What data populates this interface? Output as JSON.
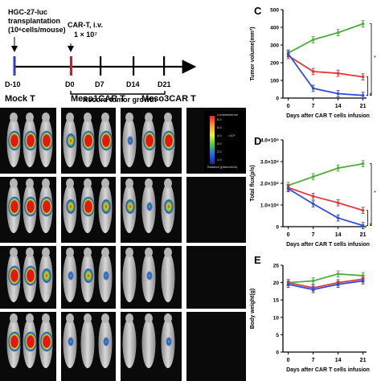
{
  "timeline": {
    "inj1_line1": "HGC-27-luc",
    "inj1_line2": "transplantation",
    "inj1_line3": "(10⁶cells/mouse)",
    "inj2_line1": "CAR-T, i.v.",
    "inj2_line2": "1 × 10⁷",
    "days": [
      "D-10",
      "D0",
      "D7",
      "D14",
      "D21"
    ],
    "record_label": "Record tumor growth",
    "colors": {
      "d_minus10": "#2b3fd0",
      "d0": "#c8202a"
    }
  },
  "imaging": {
    "groups": [
      "Mock T",
      "Meso1CAR T",
      "Meso3CAR T"
    ],
    "scale_unit": "Luminescence",
    "scale_ticks": [
      "6.0",
      "5.0",
      "4.0",
      "3.0",
      "2.0",
      "1.0"
    ],
    "scale_exponent": "×10⁶",
    "scale_units_label": "Radiance (p/sec/cm²/sr)"
  },
  "panel_letters": {
    "C": "C",
    "D": "D",
    "E": "E"
  },
  "series_colors": {
    "mock": "#4caf3a",
    "meso1": "#e03a3a",
    "meso3": "#2f4fd6"
  },
  "chart_data": [
    {
      "type": "line",
      "panel": "C",
      "xlabel": "Days after CAR T cells infusion",
      "ylabel": "Tumor volume(mm³)",
      "x": [
        0,
        7,
        14,
        21
      ],
      "ylim": [
        0,
        500
      ],
      "yticks": [
        0,
        100,
        200,
        300,
        400,
        500
      ],
      "ytick_labels": [
        "0",
        "100",
        "200",
        "300",
        "400",
        "500"
      ],
      "series": [
        {
          "key": "mock",
          "values": [
            255,
            330,
            370,
            420
          ]
        },
        {
          "key": "meso1",
          "values": [
            240,
            150,
            140,
            120
          ]
        },
        {
          "key": "meso3",
          "values": [
            250,
            55,
            25,
            15
          ]
        }
      ],
      "annotations": [
        "*",
        "*"
      ]
    },
    {
      "type": "line",
      "panel": "D",
      "xlabel": "Days after CAR T cells infusion",
      "ylabel": "Total flux(p/s)",
      "x": [
        0,
        7,
        14,
        21
      ],
      "ylim": [
        0,
        4.0
      ],
      "yticks": [
        0,
        1.0,
        2.0,
        3.0,
        4.0
      ],
      "ytick_labels": [
        "0",
        "1.0×10⁸",
        "2.0×10⁸",
        "3.0×10⁸",
        "4.0×10⁸"
      ],
      "series": [
        {
          "key": "mock",
          "values": [
            1.9,
            2.3,
            2.7,
            2.9
          ]
        },
        {
          "key": "meso1",
          "values": [
            1.8,
            1.4,
            1.1,
            0.75
          ]
        },
        {
          "key": "meso3",
          "values": [
            1.75,
            1.05,
            0.4,
            0.05
          ]
        }
      ],
      "annotations": [
        "*",
        "*"
      ]
    },
    {
      "type": "line",
      "panel": "E",
      "xlabel": "Days after CAR T cells infusion",
      "ylabel": "Body weight(g)",
      "x": [
        0,
        7,
        14,
        21
      ],
      "ylim": [
        0,
        25
      ],
      "yticks": [
        0,
        5,
        10,
        15,
        20,
        25
      ],
      "ytick_labels": [
        "0",
        "5",
        "10",
        "15",
        "20",
        "25"
      ],
      "series": [
        {
          "key": "mock",
          "values": [
            20,
            20.5,
            22.5,
            22
          ]
        },
        {
          "key": "meso1",
          "values": [
            20,
            18.5,
            20,
            21
          ]
        },
        {
          "key": "meso3",
          "values": [
            19.5,
            18,
            19.5,
            20.5
          ]
        }
      ],
      "annotations": []
    }
  ]
}
